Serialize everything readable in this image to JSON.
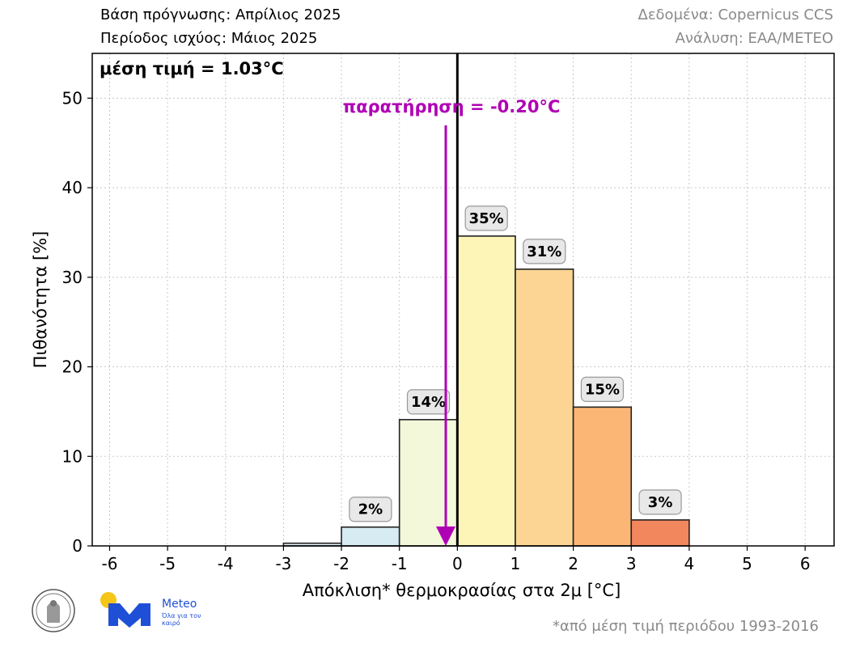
{
  "header": {
    "forecast_base": "Βάση πρόγνωσης: Απρίλιος 2025",
    "valid_period": "Περίοδος ισχύος: Μάιος 2025",
    "data_source": "Δεδομένα: Copernicus CCS",
    "analysis": "Ανάλυση: ΕΑΑ/METEO"
  },
  "chart_data": {
    "type": "bar",
    "xlabel": "Απόκλιση* θερμοκρασίας στα 2μ [°C]",
    "ylabel": "Πιθανότητα [%]",
    "xlim": [
      -6.3,
      6.5
    ],
    "ylim": [
      0,
      55
    ],
    "x_ticks": [
      -6,
      -5,
      -4,
      -3,
      -2,
      -1,
      0,
      1,
      2,
      3,
      4,
      5,
      6
    ],
    "y_ticks": [
      0,
      10,
      20,
      30,
      40,
      50
    ],
    "grid": true,
    "bins": [
      {
        "from": -3,
        "to": -2,
        "value": 0.3,
        "label": "",
        "color": "#ddeef5"
      },
      {
        "from": -2,
        "to": -1,
        "value": 2.1,
        "label": "2%",
        "color": "#d6ebf2"
      },
      {
        "from": -1,
        "to": 0,
        "value": 14.1,
        "label": "14%",
        "color": "#f3f8da"
      },
      {
        "from": 0,
        "to": 1,
        "value": 34.6,
        "label": "35%",
        "color": "#fdf4b8"
      },
      {
        "from": 1,
        "to": 2,
        "value": 30.9,
        "label": "31%",
        "color": "#fcd594"
      },
      {
        "from": 2,
        "to": 3,
        "value": 15.5,
        "label": "15%",
        "color": "#fbb675"
      },
      {
        "from": 3,
        "to": 4,
        "value": 2.9,
        "label": "3%",
        "color": "#f2875d"
      }
    ],
    "mean_label": "μέση τιμή = 1.03°C",
    "observation": {
      "value": -0.2,
      "label": "παρατήρηση = -0.20°C",
      "color": "#b000b5"
    },
    "zero_line": 0
  },
  "footnote": "*από μέση τιμή περιόδου 1993-2016",
  "logo": {
    "brand": "Meteo",
    "tagline": "Όλα για τον καιρό",
    "accent": "#f5c518",
    "brand_color": "#1f4fd6"
  }
}
